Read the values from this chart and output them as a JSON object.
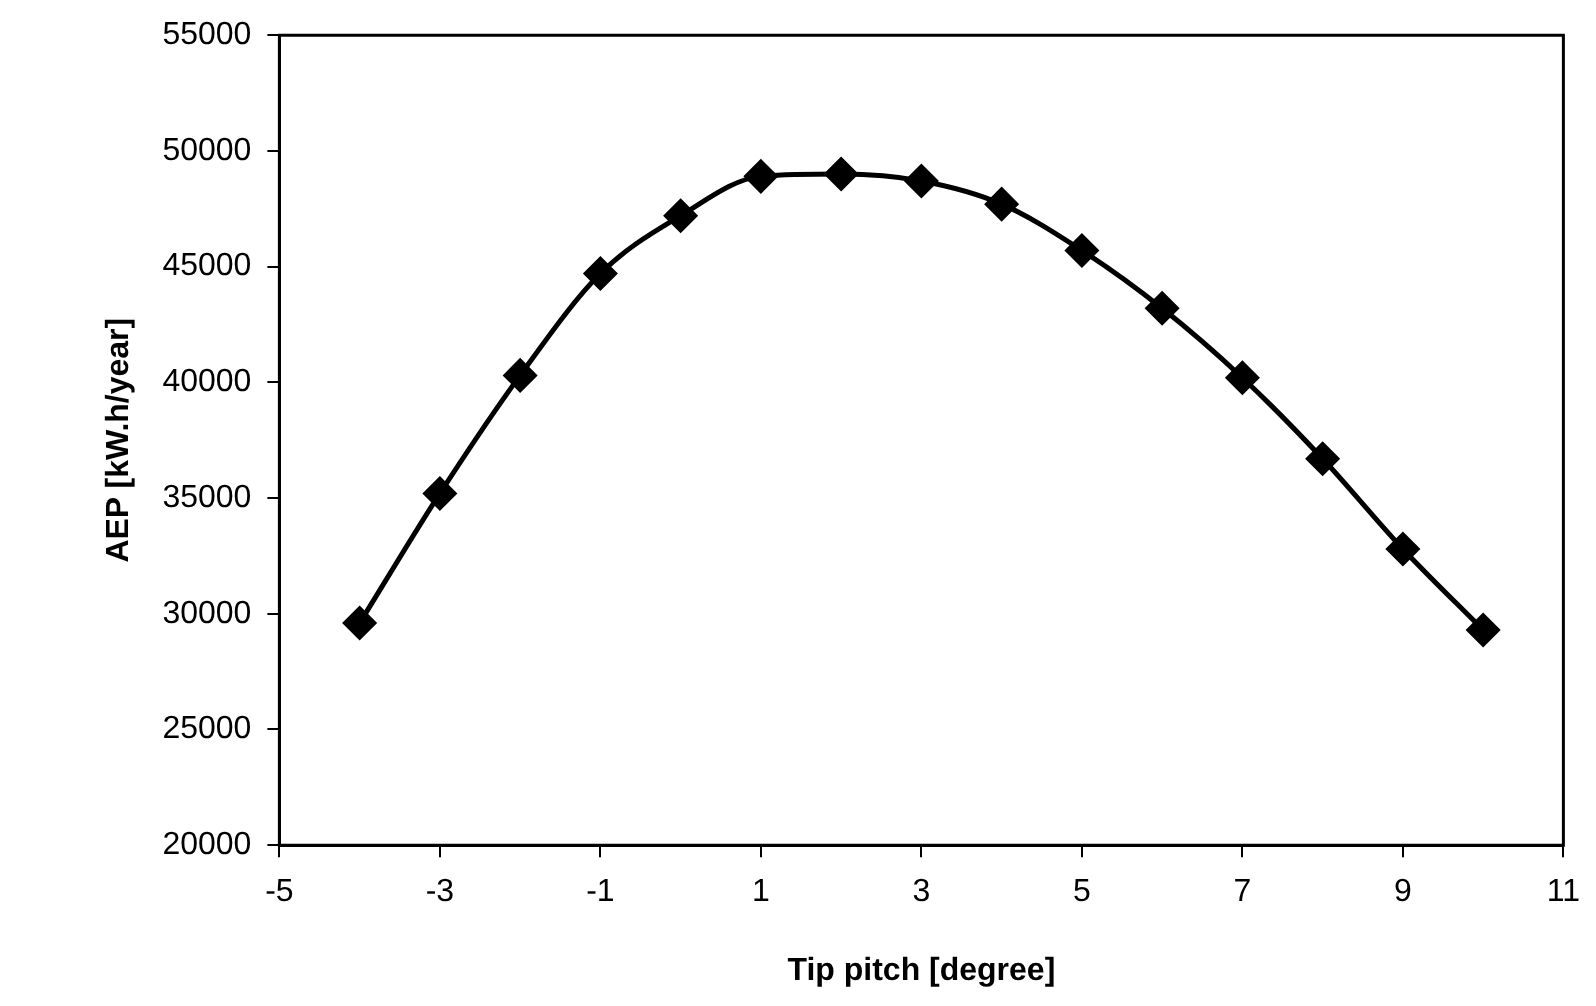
{
  "chart_data": {
    "type": "line",
    "xlabel": "Tip pitch [degree]",
    "ylabel": "AEP [kW.h/year]",
    "x": [
      -4,
      -3,
      -2,
      -1,
      0,
      1,
      2,
      3,
      4,
      5,
      6,
      7,
      8,
      9,
      10
    ],
    "series": [
      {
        "color": "#000000",
        "values": [
          29600,
          35200,
          40300,
          44700,
          47200,
          48900,
          49000,
          48700,
          47700,
          45700,
          43200,
          40200,
          36700,
          32800,
          29300
        ]
      }
    ],
    "xlim": [
      -5,
      11
    ],
    "xticks": [
      -5,
      -3,
      -1,
      1,
      3,
      5,
      7,
      9,
      11
    ],
    "ylim": [
      20000,
      55000
    ],
    "yticks": [
      20000,
      25000,
      30000,
      35000,
      40000,
      45000,
      50000,
      55000
    ],
    "grid": false,
    "legend": false,
    "marker": "diamond",
    "line_style": "solid"
  }
}
